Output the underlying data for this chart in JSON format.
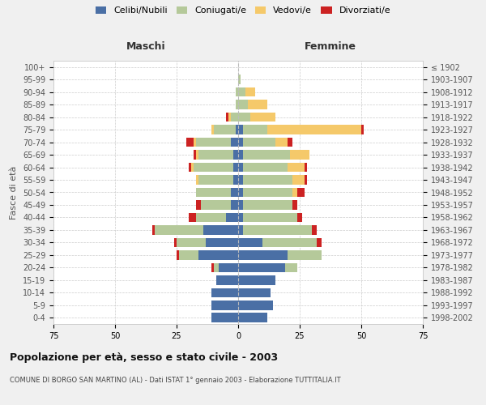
{
  "age_groups": [
    "0-4",
    "5-9",
    "10-14",
    "15-19",
    "20-24",
    "25-29",
    "30-34",
    "35-39",
    "40-44",
    "45-49",
    "50-54",
    "55-59",
    "60-64",
    "65-69",
    "70-74",
    "75-79",
    "80-84",
    "85-89",
    "90-94",
    "95-99",
    "100+"
  ],
  "birth_years": [
    "1998-2002",
    "1993-1997",
    "1988-1992",
    "1983-1987",
    "1978-1982",
    "1973-1977",
    "1968-1972",
    "1963-1967",
    "1958-1962",
    "1953-1957",
    "1948-1952",
    "1943-1947",
    "1938-1942",
    "1933-1937",
    "1928-1932",
    "1923-1927",
    "1918-1922",
    "1913-1917",
    "1908-1912",
    "1903-1907",
    "≤ 1902"
  ],
  "maschi": {
    "celibi": [
      11,
      11,
      11,
      9,
      8,
      16,
      13,
      14,
      5,
      3,
      3,
      2,
      2,
      2,
      3,
      1,
      0,
      0,
      0,
      0,
      0
    ],
    "coniugati": [
      0,
      0,
      0,
      0,
      2,
      8,
      12,
      20,
      12,
      12,
      14,
      14,
      16,
      14,
      14,
      9,
      3,
      1,
      1,
      0,
      0
    ],
    "vedovi": [
      0,
      0,
      0,
      0,
      0,
      0,
      0,
      0,
      0,
      0,
      0,
      1,
      1,
      1,
      1,
      1,
      1,
      0,
      0,
      0,
      0
    ],
    "divorziati": [
      0,
      0,
      0,
      0,
      1,
      1,
      1,
      1,
      3,
      2,
      0,
      0,
      1,
      1,
      3,
      0,
      1,
      0,
      0,
      0,
      0
    ]
  },
  "femmine": {
    "nubili": [
      12,
      14,
      13,
      15,
      19,
      20,
      10,
      2,
      2,
      2,
      2,
      2,
      2,
      2,
      2,
      2,
      0,
      0,
      0,
      0,
      0
    ],
    "coniugate": [
      0,
      0,
      0,
      0,
      5,
      14,
      22,
      28,
      22,
      20,
      20,
      20,
      18,
      19,
      13,
      10,
      5,
      4,
      3,
      1,
      0
    ],
    "vedove": [
      0,
      0,
      0,
      0,
      0,
      0,
      0,
      0,
      0,
      0,
      2,
      5,
      7,
      8,
      5,
      38,
      10,
      8,
      4,
      0,
      0
    ],
    "divorziate": [
      0,
      0,
      0,
      0,
      0,
      0,
      2,
      2,
      2,
      2,
      3,
      1,
      1,
      0,
      2,
      1,
      0,
      0,
      0,
      0,
      0
    ]
  },
  "colors": {
    "celibi_nubili": "#4a6fa5",
    "coniugati": "#b5c99a",
    "vedovi": "#f5c96a",
    "divorziati": "#cc2222"
  },
  "title": "Popolazione per età, sesso e stato civile - 2003",
  "subtitle": "COMUNE DI BORGO SAN MARTINO (AL) - Dati ISTAT 1° gennaio 2003 - Elaborazione TUTTITALIA.IT",
  "ylabel_left": "Fasce di età",
  "xlabel_left": "Maschi",
  "xlabel_right": "Femmine",
  "xlim": 75,
  "bg_color": "#f0f0f0",
  "plot_bg": "#ffffff",
  "grid_color": "#cccccc"
}
